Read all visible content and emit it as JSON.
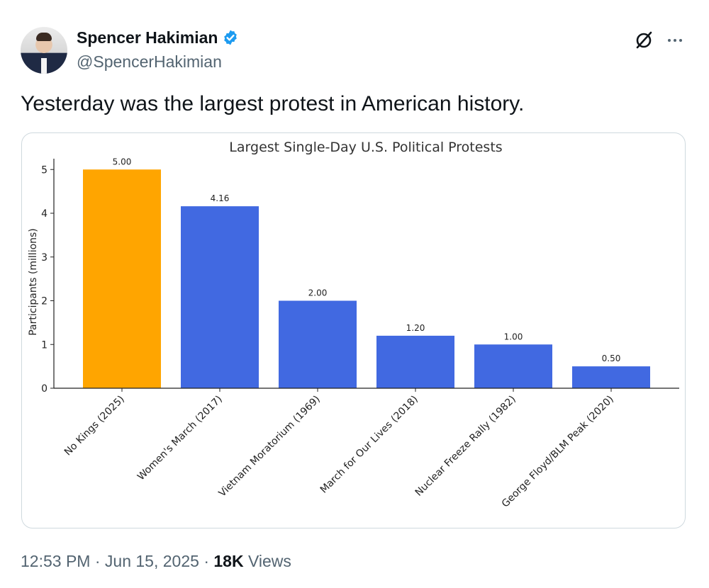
{
  "tweet": {
    "author": {
      "display_name": "Spencer Hakimian",
      "handle": "@SpencerHakimian",
      "verified": true
    },
    "text": "Yesterday was the largest protest in American history.",
    "time": "12:53 PM",
    "separator1": "·",
    "date": "Jun 15, 2025",
    "separator2": "·",
    "views_count": "18K",
    "views_label": "Views",
    "icons": [
      "verified-badge-icon",
      "grok-icon",
      "more-icon"
    ],
    "colors": {
      "verified": "#1d9bf0",
      "text": "#0f1419",
      "secondary": "#536471"
    }
  },
  "chart_data": {
    "type": "bar",
    "title": "Largest Single-Day U.S. Political Protests",
    "xlabel": "",
    "ylabel": "Participants (millions)",
    "ylim": [
      0,
      5.15
    ],
    "yticks": [
      0,
      1,
      2,
      3,
      4,
      5
    ],
    "categories": [
      "No Kings (2025)",
      "Women's March (2017)",
      "Vietnam Moratorium (1969)",
      "March for Our Lives (2018)",
      "Nuclear Freeze Rally (1982)",
      "George Floyd/BLM Peak (2020)"
    ],
    "values": [
      5.0,
      4.16,
      2.0,
      1.2,
      1.0,
      0.5
    ],
    "data_labels": [
      "5.00",
      "4.16",
      "2.00",
      "1.20",
      "1.00",
      "0.50"
    ],
    "bar_colors": [
      "#ffa500",
      "#4169e1",
      "#4169e1",
      "#4169e1",
      "#4169e1",
      "#4169e1"
    ],
    "grid": false,
    "legend": "none"
  }
}
